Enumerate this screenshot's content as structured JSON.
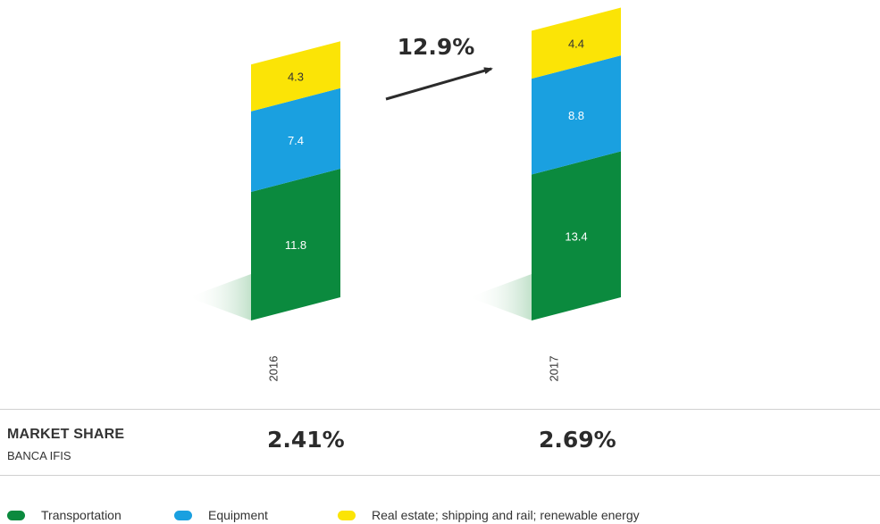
{
  "chart_data": {
    "type": "bar",
    "stacked": true,
    "categories": [
      "2016",
      "2017"
    ],
    "series": [
      {
        "name": "Transportation",
        "values": [
          11.8,
          13.4
        ],
        "color": "#0b8a3e"
      },
      {
        "name": "Equipment",
        "values": [
          7.4,
          8.8
        ],
        "color": "#1aa0e0"
      },
      {
        "name": "Real estate; shipping and rail; renewable energy",
        "values": [
          4.3,
          4.4
        ],
        "color": "#fbe406"
      }
    ],
    "annotations": {
      "growth": "12.9%"
    },
    "legend_position": "bottom-left"
  },
  "market_share": {
    "title": "MARKET SHARE",
    "subtitle": "BANCA IFIS",
    "values": [
      "2.41%",
      "2.69%"
    ]
  }
}
